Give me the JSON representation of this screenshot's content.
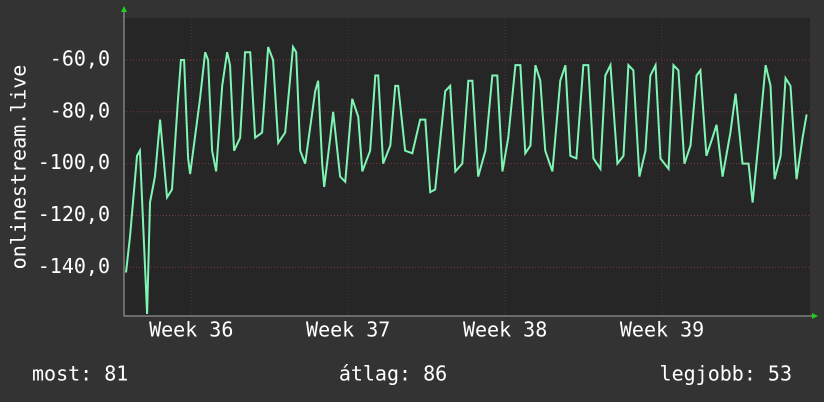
{
  "chart_data": {
    "type": "line",
    "y_label": "onlinestream.live",
    "xlim": [
      0,
      30.6
    ],
    "xticks": [
      {
        "value": 3,
        "label": "Week 36"
      },
      {
        "value": 10,
        "label": "Week 37"
      },
      {
        "value": 17,
        "label": "Week 38"
      },
      {
        "value": 24,
        "label": "Week 39"
      }
    ],
    "ylim": [
      -158.8,
      -43.8
    ],
    "yticks": [
      {
        "value": -140,
        "label": "-140,0"
      },
      {
        "value": -120,
        "label": "-120,0"
      },
      {
        "value": -100,
        "label": "-100,0"
      },
      {
        "value": -80,
        "label": "-80,0"
      },
      {
        "value": -60,
        "label": "-60,0"
      }
    ],
    "grid": true,
    "series": [
      {
        "color": "#7ff5b4",
        "x": [
          0.09,
          0.27,
          0.58,
          0.71,
          1.03,
          1.16,
          1.38,
          1.61,
          1.92,
          2.14,
          2.41,
          2.54,
          2.68,
          2.86,
          2.95,
          3.39,
          3.62,
          3.75,
          3.93,
          4.11,
          4.38,
          4.6,
          4.73,
          4.91,
          5.18,
          5.4,
          5.63,
          5.85,
          6.16,
          6.43,
          6.65,
          6.88,
          7.19,
          7.54,
          7.68,
          7.86,
          8.08,
          8.53,
          8.66,
          8.84,
          8.93,
          9.2,
          9.33,
          9.64,
          9.87,
          10.18,
          10.45,
          10.63,
          10.98,
          11.21,
          11.34,
          11.56,
          11.88,
          12.1,
          12.23,
          12.54,
          12.86,
          13.21,
          13.44,
          13.66,
          13.88,
          14.33,
          14.55,
          14.78,
          15.09,
          15.36,
          15.54,
          15.8,
          16.12,
          16.43,
          16.65,
          16.88,
          17.14,
          17.46,
          17.68,
          17.9,
          18.13,
          18.35,
          18.57,
          18.79,
          19.11,
          19.46,
          19.69,
          19.91,
          20.18,
          20.49,
          20.71,
          20.94,
          21.25,
          21.47,
          21.7,
          22.01,
          22.28,
          22.5,
          22.72,
          22.99,
          23.26,
          23.48,
          23.71,
          23.93,
          24.29,
          24.51,
          24.73,
          25.0,
          25.27,
          25.54,
          25.71,
          25.98,
          26.25,
          26.43,
          26.7,
          27.05,
          27.28,
          27.59,
          27.86,
          28.04,
          28.3,
          28.62,
          28.84,
          29.02,
          29.29,
          29.51,
          29.73,
          30.0,
          30.27,
          30.45
        ],
        "values": [
          -142,
          -128,
          -97,
          -95,
          -158,
          -115,
          -105,
          -83,
          -113,
          -110,
          -75,
          -60,
          -60,
          -98,
          -104,
          -75,
          -57,
          -60,
          -95,
          -103,
          -70,
          -57,
          -62,
          -95,
          -90,
          -57,
          -57,
          -90,
          -88,
          -55,
          -60,
          -92,
          -88,
          -55,
          -57,
          -95,
          -100,
          -72,
          -68,
          -100,
          -109,
          -90,
          -80,
          -105,
          -107,
          -75,
          -82,
          -103,
          -95,
          -66,
          -66,
          -100,
          -93,
          -70,
          -70,
          -95,
          -96,
          -83,
          -83,
          -111,
          -110,
          -72,
          -70,
          -103,
          -100,
          -68,
          -68,
          -105,
          -95,
          -66,
          -66,
          -103,
          -90,
          -62,
          -62,
          -96,
          -93,
          -62,
          -68,
          -95,
          -103,
          -68,
          -62,
          -97,
          -98,
          -62,
          -62,
          -98,
          -102,
          -66,
          -62,
          -100,
          -97,
          -62,
          -64,
          -105,
          -95,
          -66,
          -62,
          -98,
          -102,
          -62,
          -64,
          -100,
          -93,
          -66,
          -64,
          -97,
          -90,
          -85,
          -105,
          -88,
          -73,
          -100,
          -100,
          -115,
          -92,
          -62,
          -70,
          -106,
          -97,
          -67,
          -70,
          -106,
          -90,
          -81
        ]
      }
    ],
    "footer": [
      "most: 81",
      "átlag: 86",
      "legjobb: 53"
    ]
  }
}
